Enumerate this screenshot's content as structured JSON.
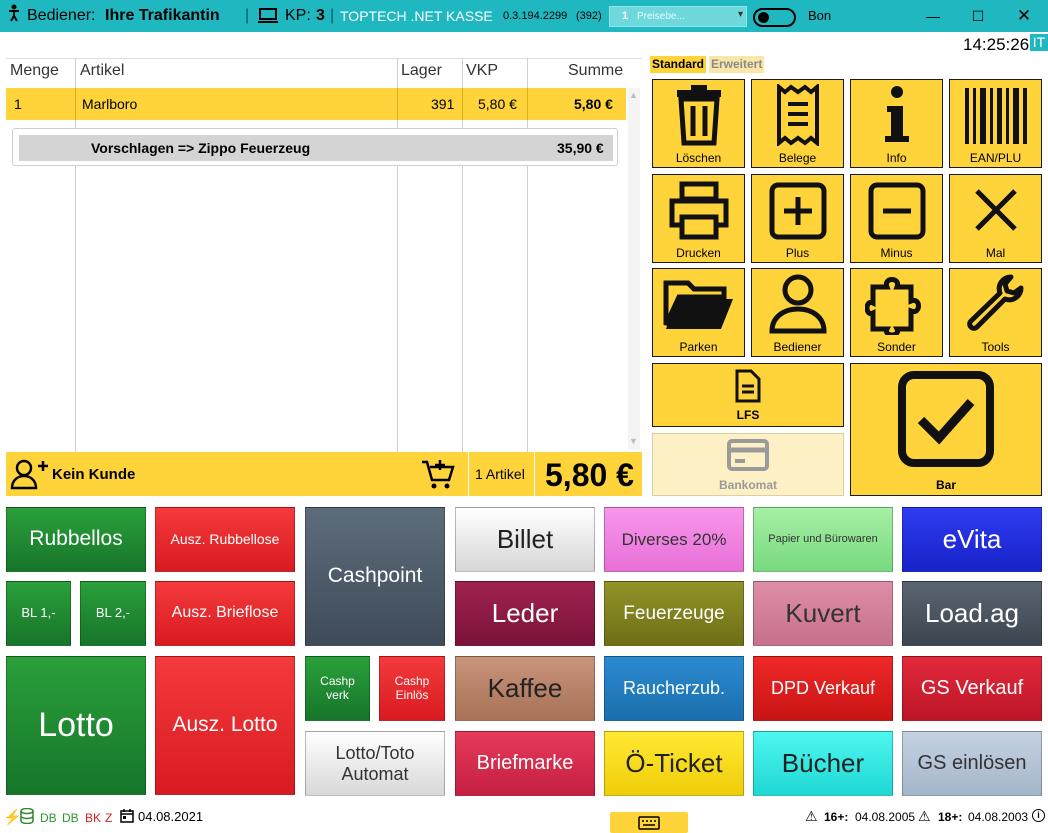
{
  "titlebar": {
    "operator_label": "Bediener:",
    "operator_name": "Ihre Trafikantin",
    "kp_label": "KP:",
    "kp_value": "3",
    "app_name": "TOPTECH .NET KASSE",
    "version": "0.3.194.2299",
    "version_count": "(392)",
    "price_level_value": "1",
    "price_level_placeholder": "Preisebe...",
    "bon_label": "Bon",
    "clock": "14:25:26",
    "lang_badge": "IT"
  },
  "grid": {
    "headers": {
      "menge": "Menge",
      "artikel": "Artikel",
      "lager": "Lager",
      "vkp": "VKP",
      "summe": "Summe"
    },
    "rows": [
      {
        "menge": "1",
        "artikel": "Marlboro",
        "lager": "391",
        "vkp": "5,80 €",
        "summe": "5,80 €"
      }
    ],
    "suggestion": {
      "text": "Vorschlagen => Zippo Feuerzeug",
      "price": "35,90 €"
    }
  },
  "customer_bar": {
    "customer": "Kein Kunde",
    "article_count": "1 Artikel",
    "total": "5,80 €"
  },
  "tabs": {
    "standard": "Standard",
    "erweitert": "Erweitert"
  },
  "function_buttons": {
    "loeschen": "Löschen",
    "belege": "Belege",
    "info": "Info",
    "ean_plu": "EAN/PLU",
    "drucken": "Drucken",
    "plus": "Plus",
    "minus": "Minus",
    "mal": "Mal",
    "parken": "Parken",
    "bediener": "Bediener",
    "sonder": "Sonder",
    "tools": "Tools",
    "lfs": "LFS",
    "bankomat": "Bankomat",
    "bar": "Bar"
  },
  "tiles": {
    "rubbellos": "Rubbellos",
    "ausz_rubbellose": "Ausz. Rubbellose",
    "cashpoint": "Cashpoint",
    "billet": "Billet",
    "diverses": "Diverses 20%",
    "papier": "Papier und Bürowaren",
    "evita": "eVita",
    "bl1": "BL 1,-",
    "bl2": "BL 2,-",
    "ausz_brieflose": "Ausz. Brieflose",
    "leder": "Leder",
    "feuerzeuge": "Feuerzeuge",
    "kuvert": "Kuvert",
    "loadag": "Load.ag",
    "lotto": "Lotto",
    "ausz_lotto": "Ausz. Lotto",
    "cashp_verk_1": "Cashp",
    "cashp_verk_2": "verk",
    "cashp_einloes_1": "Cashp",
    "cashp_einloes_2": "Einlös",
    "kaffee": "Kaffee",
    "raucherzub": "Raucherzub.",
    "dpd": "DPD Verkauf",
    "gs_verkauf": "GS Verkauf",
    "lotto_toto_1": "Lotto/Toto",
    "lotto_toto_2": "Automat",
    "briefmarke": "Briefmarke",
    "oeticket": "Ö-Ticket",
    "buecher": "Bücher",
    "gs_einloesen": "GS einlösen"
  },
  "statusbar": {
    "db1": "DB",
    "db2": "DB",
    "bk": "BK",
    "z": "Z",
    "date": "04.08.2021",
    "age16_label": "16+:",
    "age16_date": "04.08.2005",
    "age18_label": "18+:",
    "age18_date": "04.08.2003"
  },
  "colors": {
    "titlebar": "#20b8c0",
    "accent_yellow": "#ffd43b",
    "green": "#1f8a2e",
    "red": "#e8222a"
  }
}
